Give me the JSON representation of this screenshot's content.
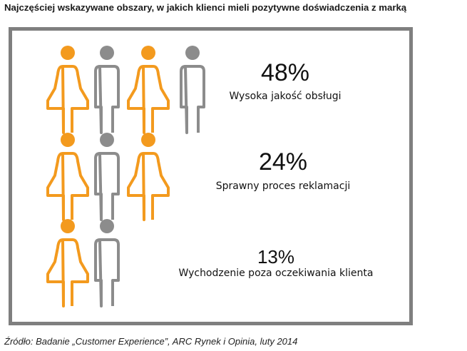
{
  "title": "Najczęściej wskazywane obszary, w jakich klienci mieli pozytywne doświadczenia z marką",
  "source": "Źródło: Badanie „Customer Experience”, ARC Rynek i Opinia, luty 2014",
  "colors": {
    "female": "#f39a1e",
    "male": "#8c8c8c",
    "frame": "#7f7f7f"
  },
  "chart_data": {
    "type": "table",
    "title": "Najczęściej wskazywane obszary, w jakich klienci mieli pozytywne doświadczenia z marką",
    "rows": [
      {
        "value": "48%",
        "label": "Wysoka jakość obsługi",
        "number": 48,
        "icons": [
          "female",
          "male",
          "female",
          "male"
        ]
      },
      {
        "value": "24%",
        "label": "Sprawny proces reklamacji",
        "number": 24,
        "icons": [
          "female",
          "male",
          "female"
        ]
      },
      {
        "value": "13%",
        "label": "Wychodzenie poza oczekiwania klienta",
        "number": 13,
        "icons": [
          "female",
          "male"
        ]
      }
    ]
  }
}
